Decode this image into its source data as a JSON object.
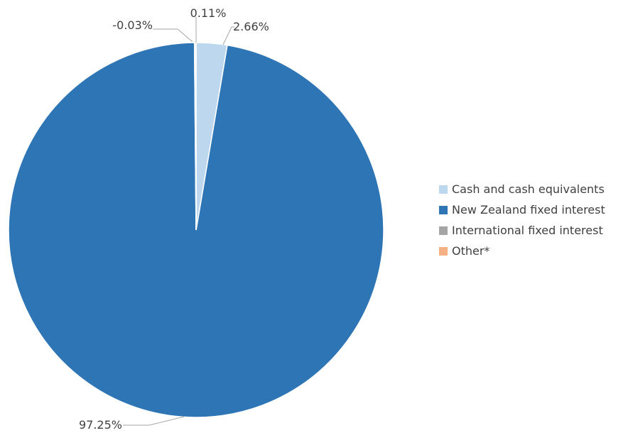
{
  "chart_data": {
    "type": "pie",
    "slices": [
      {
        "label": "Cash and cash equivalents",
        "value": 2.66,
        "value_label": "2.66%",
        "color": "#bdd7ee"
      },
      {
        "label": "New Zealand fixed interest",
        "value": 97.25,
        "value_label": "97.25%",
        "color": "#2e75b6"
      },
      {
        "label": "International fixed interest",
        "value": 0.11,
        "value_label": "0.11%",
        "color": "#a5a5a5"
      },
      {
        "label": "Other*",
        "value": -0.03,
        "value_label": "-0.03%",
        "color": "#f4b183"
      }
    ],
    "legend_position": "right"
  }
}
